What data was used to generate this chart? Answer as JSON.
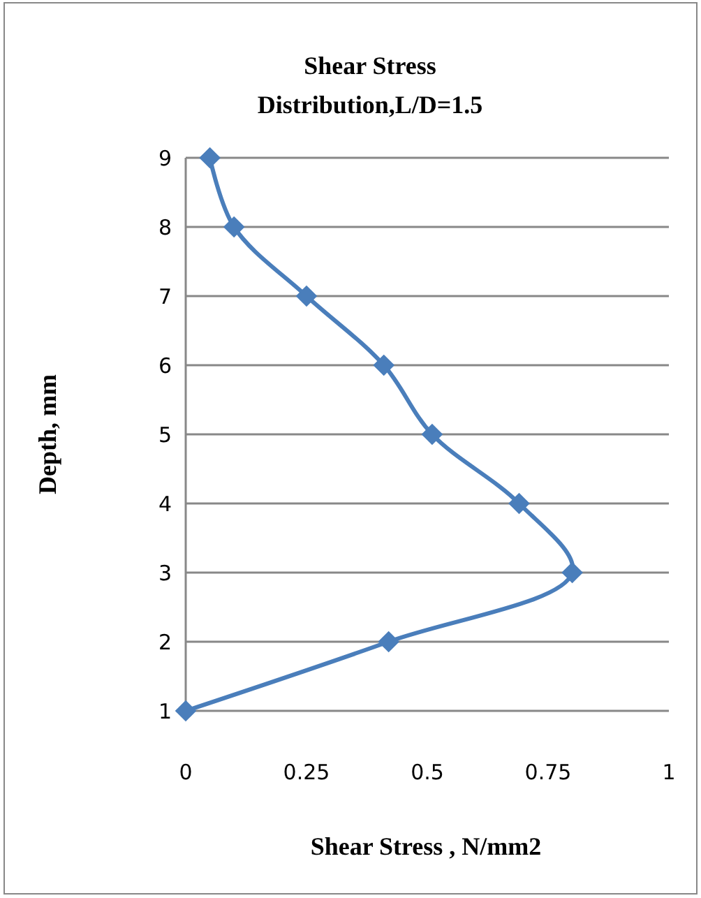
{
  "chart_data": {
    "type": "line",
    "title": "Shear Stress Distribution,L/D=1.5",
    "xlabel": "Shear Stress ,  N/mm2",
    "ylabel": "Depth,  mm",
    "x": [
      0,
      0.42,
      0.8,
      0.69,
      0.51,
      0.41,
      0.25,
      0.1,
      0.05
    ],
    "series": [
      {
        "color": "#4a7ebb",
        "values": [
          1,
          2,
          3,
          4,
          5,
          6,
          7,
          8,
          9
        ]
      }
    ],
    "xlim": [
      0,
      1
    ],
    "xticks": [
      0,
      0.25,
      0.5,
      0.75,
      1
    ],
    "ylim": [
      1,
      9
    ],
    "yticks": [
      1,
      2,
      3,
      4,
      5,
      6,
      7,
      8,
      9
    ],
    "grid": "y",
    "marker": "diamond",
    "line_style": "solid"
  }
}
